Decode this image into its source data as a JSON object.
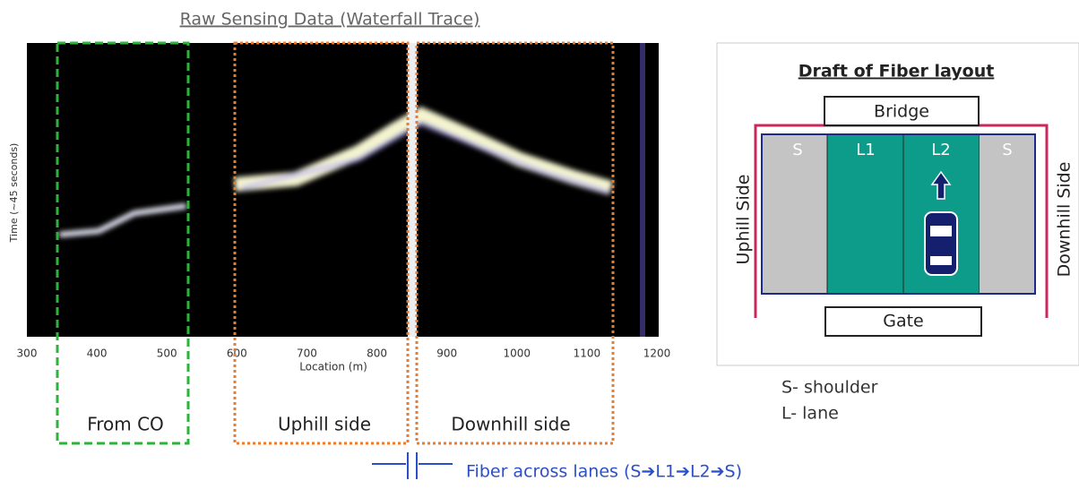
{
  "waterfall": {
    "title": "Raw Sensing Data (Waterfall Trace)",
    "y_axis_label": "Time (~45 seconds)",
    "x_axis_label": "Location (m)",
    "x_ticks": [
      300,
      400,
      500,
      600,
      700,
      800,
      900,
      1000,
      1100,
      1200
    ],
    "regions": [
      "From CO",
      "Uphill side",
      "Downhill side"
    ],
    "fiber_note": "Fiber across lanes (S➔L1➔L2➔S)"
  },
  "layout": {
    "title": "Draft of Fiber layout",
    "bridge": "Bridge",
    "gate": "Gate",
    "uphill": "Uphill Side",
    "downhill": "Downhill Side",
    "lanes": [
      "S",
      "L1",
      "L2",
      "S"
    ],
    "legend": [
      "S- shoulder",
      "L- lane"
    ]
  }
}
